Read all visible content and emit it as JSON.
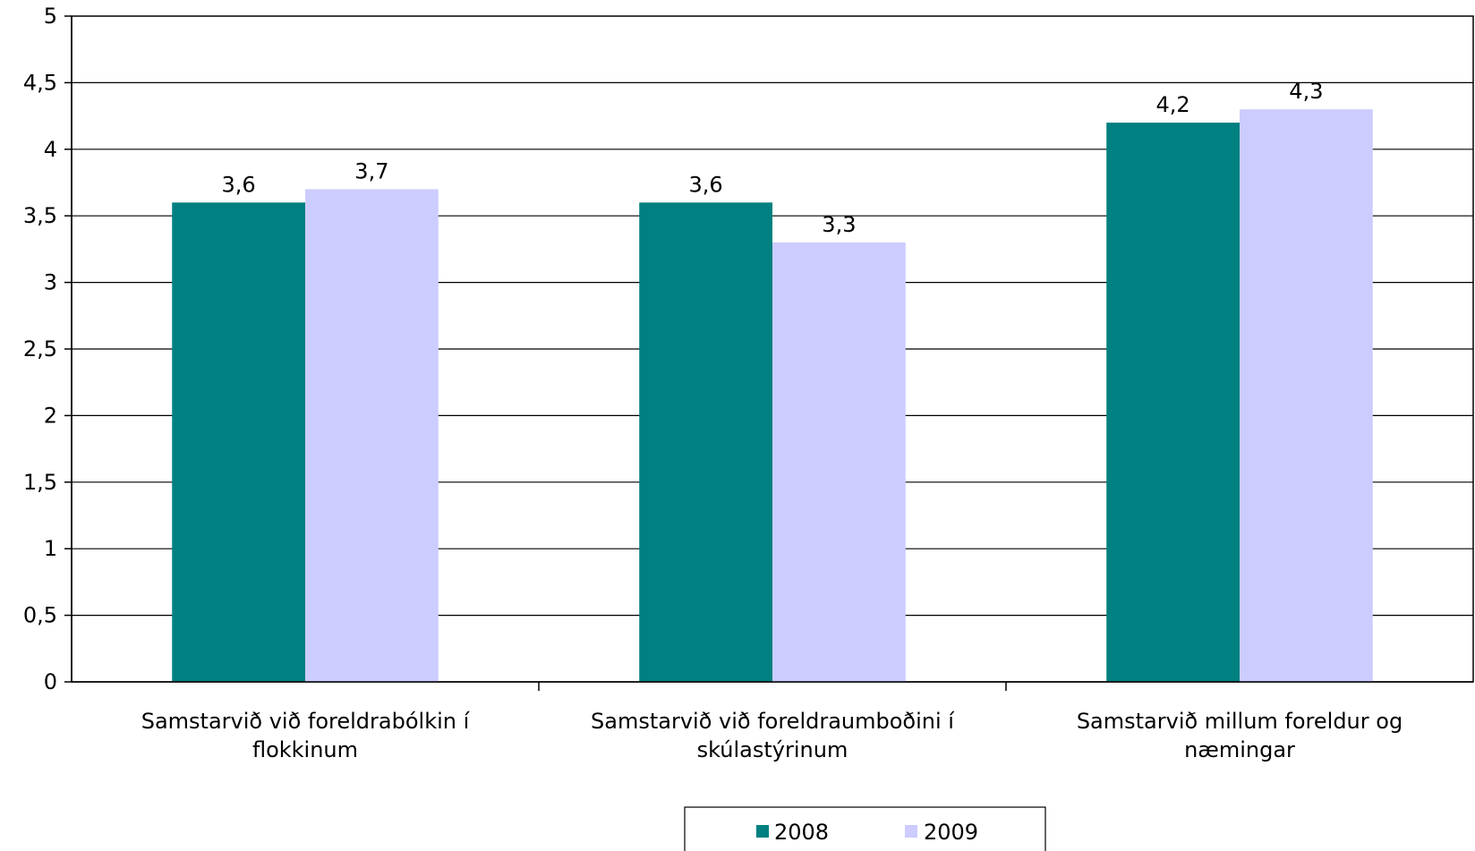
{
  "chart_data": {
    "type": "bar",
    "categories": [
      [
        "Samstarvið við foreldrabólkin í",
        "flokkinum"
      ],
      [
        "Samstarvið við foreldraumboðini í",
        "skúlastýrinum"
      ],
      [
        "Samstarvið millum foreldur og",
        "næmingar"
      ]
    ],
    "series": [
      {
        "name": "2008",
        "values": [
          3.6,
          3.6,
          4.2
        ],
        "labels": [
          "3,6",
          "3,6",
          "4,2"
        ],
        "color": "#008080"
      },
      {
        "name": "2009",
        "values": [
          3.7,
          3.3,
          4.3
        ],
        "labels": [
          "3,7",
          "3,3",
          "4,3"
        ],
        "color": "#CCCCFF"
      }
    ],
    "y_ticks": [
      "0",
      "0,5",
      "1",
      "1,5",
      "2",
      "2,5",
      "3",
      "3,5",
      "4",
      "4,5",
      "5"
    ],
    "ylim": [
      0,
      5
    ],
    "grid": true,
    "legend_position": "bottom"
  }
}
